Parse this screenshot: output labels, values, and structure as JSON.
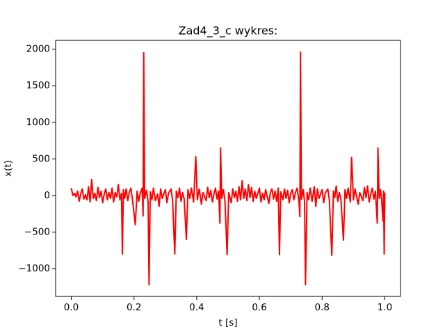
{
  "chart_data": {
    "type": "line",
    "title": "Zad4_3_c wykres:",
    "xlabel": "t [s]",
    "ylabel": "x(t)",
    "xlim": [
      -0.05,
      1.05
    ],
    "ylim": [
      -1380,
      2120
    ],
    "xticks": [
      {
        "value": 0,
        "label": "0.0"
      },
      0.2,
      0.4,
      0.6,
      0.8,
      {
        "value": 1,
        "label": "1.0"
      }
    ],
    "yticks": [
      {
        "value": -1000,
        "label": "−1000"
      },
      {
        "value": -500,
        "label": "−500"
      },
      0,
      500,
      1000,
      1500,
      2000
    ],
    "grid": false,
    "x": [
      0,
      0.005,
      0.01,
      0.015,
      0.02,
      0.025,
      0.03,
      0.035,
      0.04,
      0.045,
      0.05,
      0.055,
      0.06,
      0.065,
      0.07,
      0.075,
      0.08,
      0.085,
      0.09,
      0.095,
      0.1,
      0.105,
      0.11,
      0.115,
      0.12,
      0.125,
      0.13,
      0.135,
      0.14,
      0.145,
      0.15,
      0.155,
      0.16,
      0.163,
      0.166,
      0.17,
      0.175,
      0.18,
      0.185,
      0.19,
      0.195,
      0.204,
      0.21,
      0.215,
      0.22,
      0.226,
      0.229,
      0.231,
      0.234,
      0.24,
      0.245,
      0.248,
      0.252,
      0.257,
      0.262,
      0.268,
      0.275,
      0.28,
      0.285,
      0.29,
      0.3,
      0.305,
      0.31,
      0.318,
      0.323,
      0.33,
      0.335,
      0.34,
      0.345,
      0.35,
      0.355,
      0.36,
      0.367,
      0.372,
      0.378,
      0.383,
      0.39,
      0.397,
      0.402,
      0.408,
      0.415,
      0.42,
      0.43,
      0.435,
      0.44,
      0.445,
      0.45,
      0.455,
      0.46,
      0.465,
      0.47,
      0.474,
      0.476,
      0.48,
      0.485,
      0.49,
      0.497,
      0.502,
      0.51,
      0.515,
      0.52,
      0.525,
      0.53,
      0.535,
      0.54,
      0.545,
      0.55,
      0.555,
      0.56,
      0.565,
      0.57,
      0.575,
      0.58,
      0.585,
      0.59,
      0.6,
      0.605,
      0.61,
      0.615,
      0.62,
      0.63,
      0.635,
      0.64,
      0.645,
      0.65,
      0.655,
      0.66,
      0.664,
      0.668,
      0.675,
      0.68,
      0.685,
      0.69,
      0.695,
      0.7,
      0.705,
      0.71,
      0.715,
      0.72,
      0.726,
      0.729,
      0.731,
      0.734,
      0.74,
      0.744,
      0.747,
      0.752,
      0.757,
      0.762,
      0.768,
      0.775,
      0.78,
      0.785,
      0.79,
      0.8,
      0.805,
      0.81,
      0.818,
      0.823,
      0.831,
      0.836,
      0.84,
      0.845,
      0.85,
      0.855,
      0.86,
      0.868,
      0.873,
      0.878,
      0.883,
      0.89,
      0.894,
      0.9,
      0.905,
      0.915,
      0.92,
      0.93,
      0.935,
      0.94,
      0.945,
      0.95,
      0.955,
      0.96,
      0.965,
      0.97,
      0.976,
      0.978,
      0.982,
      0.986,
      0.99,
      0.994,
      0.996,
      0.998,
      1.0
    ],
    "series": [
      {
        "name": "x(t)",
        "color": "#ff0000",
        "values": [
          100,
          0,
          30,
          -20,
          60,
          -80,
          20,
          90,
          -50,
          10,
          -60,
          120,
          -90,
          220,
          -40,
          30,
          -70,
          110,
          -30,
          60,
          -100,
          20,
          90,
          -60,
          40,
          -40,
          100,
          -90,
          40,
          -20,
          150,
          -60,
          30,
          -800,
          80,
          -40,
          90,
          -70,
          40,
          100,
          -50,
          -400,
          60,
          -80,
          30,
          100,
          -280,
          1950,
          -40,
          70,
          -90,
          -1220,
          50,
          -60,
          100,
          -70,
          20,
          -150,
          90,
          -40,
          80,
          -100,
          30,
          90,
          -60,
          -800,
          60,
          -30,
          100,
          -80,
          40,
          -50,
          -600,
          80,
          -40,
          100,
          -90,
          530,
          -60,
          90,
          -120,
          40,
          -70,
          110,
          -30,
          70,
          -90,
          20,
          100,
          -50,
          60,
          -380,
          650,
          -40,
          80,
          -70,
          -810,
          40,
          -100,
          90,
          -30,
          60,
          -80,
          120,
          -60,
          200,
          -40,
          90,
          -70,
          150,
          -30,
          110,
          -80,
          60,
          -40,
          100,
          -90,
          30,
          -60,
          80,
          -110,
          40,
          90,
          -50,
          60,
          -80,
          100,
          -810,
          50,
          -60,
          90,
          -40,
          70,
          -100,
          30,
          80,
          -60,
          40,
          100,
          -70,
          -290,
          1960,
          -50,
          80,
          -90,
          -1220,
          40,
          -60,
          100,
          -80,
          120,
          -150,
          90,
          -40,
          80,
          -100,
          30,
          90,
          -60,
          -820,
          60,
          -30,
          130,
          -80,
          40,
          -50,
          -610,
          80,
          -40,
          100,
          -90,
          520,
          -60,
          90,
          -120,
          40,
          -70,
          110,
          -30,
          130,
          -90,
          20,
          100,
          -50,
          60,
          -380,
          650,
          -40,
          80,
          -70,
          -350,
          60,
          -800,
          40
        ]
      }
    ]
  }
}
